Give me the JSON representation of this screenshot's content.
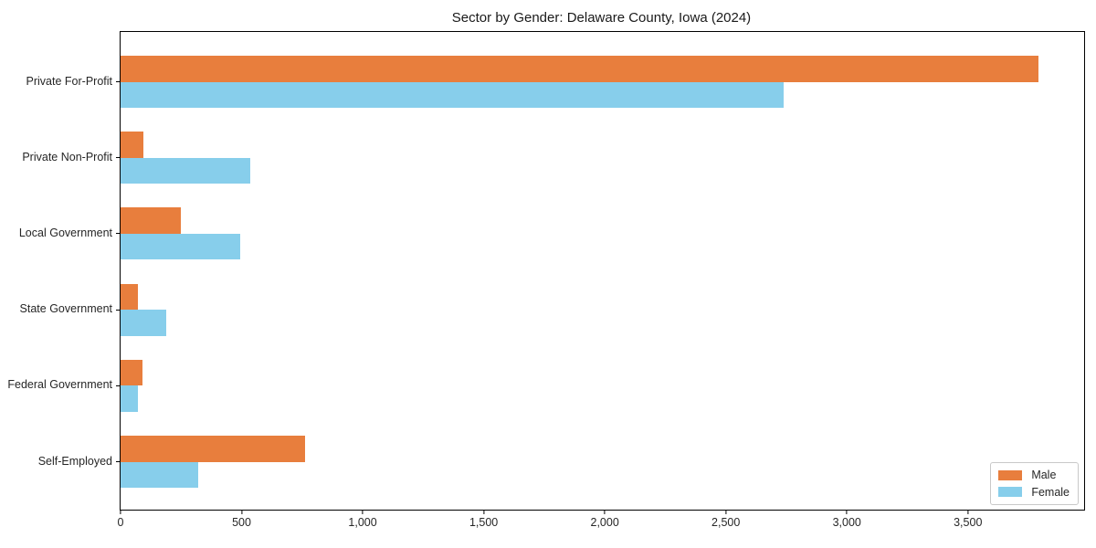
{
  "title": "Sector by Gender: Delaware County, Iowa (2024)",
  "colors": {
    "male": "#e87e3d",
    "female": "#87ceeb",
    "axis": "#000000",
    "legend_border": "#c9c9c9",
    "text": "#262626"
  },
  "chart_data": {
    "type": "bar",
    "orientation": "horizontal",
    "title": "Sector by Gender: Delaware County, Iowa (2024)",
    "categories": [
      "Private For-Profit",
      "Private Non-Profit",
      "Local Government",
      "State Government",
      "Federal Government",
      "Self-Employed"
    ],
    "series": [
      {
        "name": "Male",
        "color": "#e87e3d",
        "values": [
          3790,
          93,
          250,
          70,
          89,
          762
        ]
      },
      {
        "name": "Female",
        "color": "#87ceeb",
        "values": [
          2740,
          535,
          493,
          190,
          70,
          320
        ]
      }
    ],
    "xlabel": "",
    "ylabel": "",
    "xlim": [
      0,
      3980
    ],
    "xticks": [
      0,
      500,
      1000,
      1500,
      2000,
      2500,
      3000,
      3500
    ],
    "xtick_labels": [
      "0",
      "500",
      "1,000",
      "1,500",
      "2,000",
      "2,500",
      "3,000",
      "3,500"
    ],
    "grid": false,
    "legend_position": "lower right"
  },
  "legend": {
    "items": [
      {
        "label": "Male"
      },
      {
        "label": "Female"
      }
    ]
  }
}
